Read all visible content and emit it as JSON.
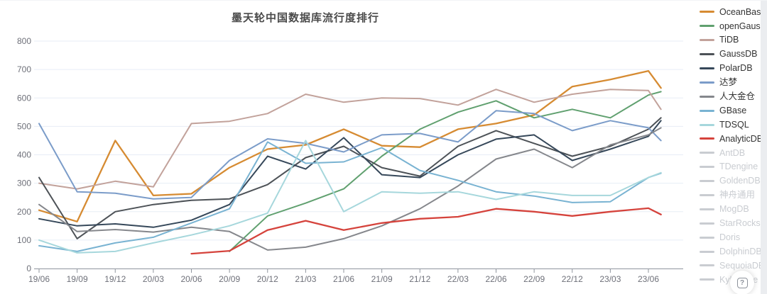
{
  "title": "墨天轮中国数据库流行度排行",
  "help_button": {
    "icon": "question-mark",
    "label": "?"
  },
  "colors": {
    "grid": "#e7edf6",
    "axis": "#8f959e",
    "tick_label": "#6e7079",
    "title": "#4a4a4a",
    "legend_text": "#333333",
    "disabled_legend": "#c9ccd1",
    "page_edge": "#ebedf0",
    "background": "#ffffff"
  },
  "chart_data": {
    "type": "line",
    "title": "墨天轮中国数据库流行度排行",
    "x_labels": [
      "19/06",
      "19/09",
      "19/12",
      "20/03",
      "20/06",
      "20/09",
      "20/12",
      "21/03",
      "21/06",
      "21/09",
      "21/12",
      "22/03",
      "22/06",
      "22/09",
      "22/12",
      "23/03",
      "23/06"
    ],
    "x_unit_positions": [
      0,
      1,
      2,
      3,
      4,
      5,
      6,
      7,
      8,
      9,
      10,
      11,
      12,
      13,
      14,
      15,
      16,
      16.33
    ],
    "ylabel": "",
    "xlabel": "",
    "ylim": [
      0,
      800
    ],
    "y_ticks": [
      0,
      100,
      200,
      300,
      400,
      500,
      600,
      700,
      800
    ],
    "grid": true,
    "legend_position": "right",
    "series": [
      {
        "name": "OceanBase",
        "color": "#d68b32",
        "enabled": true,
        "values": [
          205,
          165,
          450,
          257,
          263,
          355,
          420,
          435,
          490,
          432,
          427,
          490,
          510,
          540,
          640,
          665,
          695,
          635
        ]
      },
      {
        "name": "openGauss",
        "color": "#60a06f",
        "enabled": true,
        "values": [
          null,
          null,
          null,
          null,
          null,
          60,
          185,
          230,
          280,
          395,
          490,
          550,
          590,
          530,
          560,
          530,
          610,
          622
        ]
      },
      {
        "name": "TiDB",
        "color": "#c2a29b",
        "enabled": true,
        "values": [
          300,
          280,
          307,
          287,
          510,
          518,
          545,
          613,
          585,
          600,
          598,
          575,
          630,
          585,
          613,
          630,
          626,
          560
        ]
      },
      {
        "name": "GaussDB",
        "color": "#4d5257",
        "enabled": true,
        "values": [
          320,
          105,
          200,
          225,
          240,
          245,
          295,
          390,
          430,
          355,
          325,
          430,
          485,
          440,
          395,
          430,
          490,
          530
        ]
      },
      {
        "name": "PolarDB",
        "color": "#36485a",
        "enabled": true,
        "values": [
          175,
          150,
          157,
          145,
          170,
          225,
          395,
          350,
          460,
          330,
          320,
          400,
          455,
          470,
          380,
          420,
          465,
          520
        ]
      },
      {
        "name": "达梦",
        "color": "#7b9cc9",
        "enabled": true,
        "values": [
          510,
          270,
          265,
          245,
          250,
          380,
          456,
          440,
          410,
          470,
          475,
          445,
          555,
          545,
          485,
          520,
          495,
          450
        ]
      },
      {
        "name": "人大金仓",
        "color": "#85878c",
        "enabled": true,
        "values": [
          225,
          130,
          137,
          128,
          145,
          130,
          65,
          75,
          105,
          150,
          210,
          290,
          385,
          420,
          355,
          435,
          470,
          495
        ]
      },
      {
        "name": "GBase",
        "color": "#79b3d2",
        "enabled": true,
        "values": [
          80,
          60,
          90,
          110,
          160,
          210,
          445,
          370,
          375,
          425,
          345,
          310,
          270,
          255,
          232,
          235,
          320,
          335
        ]
      },
      {
        "name": "TDSQL",
        "color": "#a6d7dc",
        "enabled": true,
        "values": [
          100,
          55,
          60,
          90,
          118,
          150,
          195,
          450,
          200,
          270,
          265,
          270,
          243,
          270,
          257,
          257,
          320,
          337
        ]
      },
      {
        "name": "AnalyticDB",
        "color": "#d5433c",
        "enabled": true,
        "values": [
          null,
          null,
          null,
          null,
          52,
          62,
          135,
          168,
          135,
          160,
          175,
          182,
          210,
          200,
          185,
          200,
          212,
          190
        ]
      },
      {
        "name": "AntDB",
        "color": "#c9ccd1",
        "enabled": false,
        "values": []
      },
      {
        "name": "TDengine",
        "color": "#c9ccd1",
        "enabled": false,
        "values": []
      },
      {
        "name": "GoldenDB",
        "color": "#c9ccd1",
        "enabled": false,
        "values": []
      },
      {
        "name": "神舟通用",
        "color": "#c9ccd1",
        "enabled": false,
        "values": []
      },
      {
        "name": "MogDB",
        "color": "#c9ccd1",
        "enabled": false,
        "values": []
      },
      {
        "name": "StarRocks",
        "color": "#c9ccd1",
        "enabled": false,
        "values": []
      },
      {
        "name": "Doris",
        "color": "#c9ccd1",
        "enabled": false,
        "values": []
      },
      {
        "name": "DolphinDB",
        "color": "#c9ccd1",
        "enabled": false,
        "values": []
      },
      {
        "name": "SequoiaDB",
        "color": "#c9ccd1",
        "enabled": false,
        "values": []
      },
      {
        "name": "Kyligence",
        "color": "#c9ccd1",
        "enabled": false,
        "values": []
      }
    ]
  }
}
